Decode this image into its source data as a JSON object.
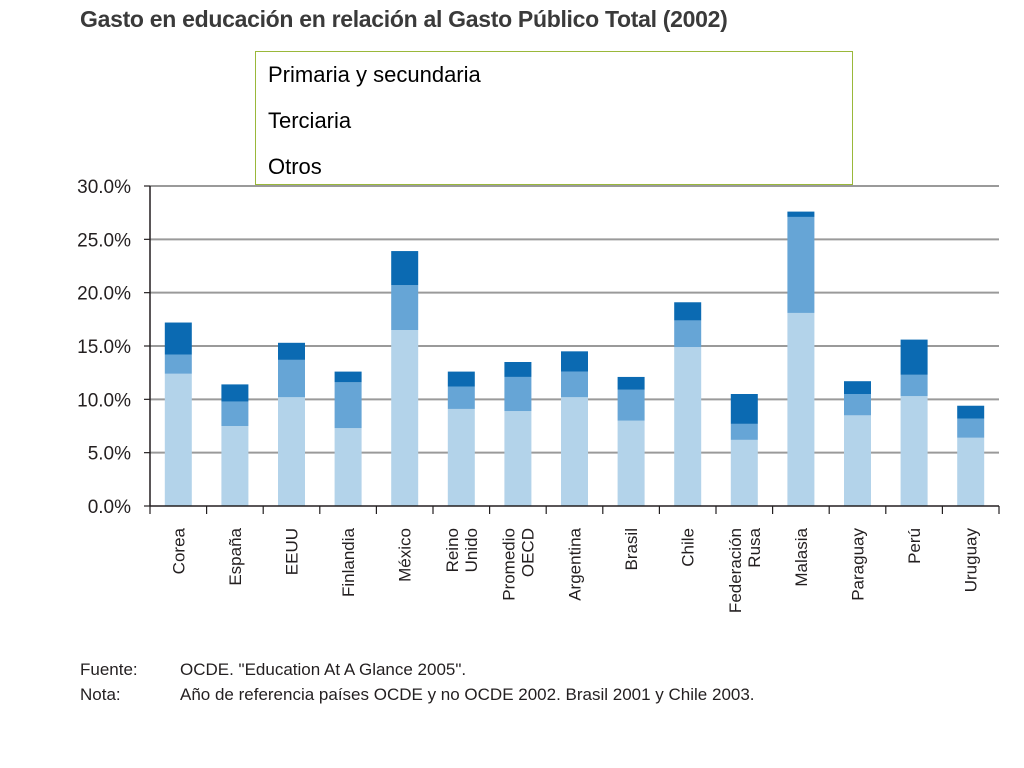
{
  "title": "Gasto en educación en relación al Gasto Público Total (2002)",
  "legend": [
    "Primaria y secundaria",
    "Terciaria",
    "Otros"
  ],
  "colors": {
    "Primaria y secundaria": "#b3d3ea",
    "Terciaria": "#66a5d6",
    "Otros": "#0b6ab2",
    "gridline": "#9a9a9a",
    "axis": "#231f20",
    "legend_border": "#9ab83a"
  },
  "chart_data": {
    "type": "bar",
    "stacked": true,
    "categories": [
      [
        "Corea"
      ],
      [
        "España"
      ],
      [
        "EEUU"
      ],
      [
        "Finlandia"
      ],
      [
        "México"
      ],
      [
        "Reino",
        "Unido"
      ],
      [
        "Promedio",
        "OECD"
      ],
      [
        "Argentina"
      ],
      [
        "Brasil"
      ],
      [
        "Chile"
      ],
      [
        "Federación",
        "Rusa"
      ],
      [
        "Malasia"
      ],
      [
        "Paraguay"
      ],
      [
        "Perú"
      ],
      [
        "Uruguay"
      ]
    ],
    "series": [
      {
        "name": "Primaria y secundaria",
        "values": [
          12.4,
          7.5,
          10.2,
          7.3,
          16.5,
          9.1,
          8.9,
          10.2,
          8.0,
          14.9,
          6.2,
          18.1,
          8.5,
          10.3,
          6.4
        ]
      },
      {
        "name": "Terciaria",
        "values": [
          1.8,
          2.3,
          3.5,
          4.3,
          4.2,
          2.1,
          3.2,
          2.4,
          2.9,
          2.5,
          1.5,
          9.0,
          2.0,
          2.0,
          1.8
        ]
      },
      {
        "name": "Otros",
        "values": [
          3.0,
          1.6,
          1.6,
          1.0,
          3.2,
          1.4,
          1.4,
          1.9,
          1.2,
          1.7,
          2.8,
          0.5,
          1.2,
          3.3,
          1.2
        ]
      }
    ],
    "yticks": [
      "0.0%",
      "5.0%",
      "10.0%",
      "15.0%",
      "20.0%",
      "25.0%",
      "30.0%"
    ],
    "ylim": [
      0,
      30
    ],
    "grid": true,
    "legend_position": "top"
  },
  "footer": [
    {
      "label": "Fuente:",
      "text": "OCDE. \"Education At A Glance 2005\"."
    },
    {
      "label": "Nota:",
      "text": "Año de referencia países OCDE y no OCDE 2002. Brasil 2001 y Chile 2003."
    }
  ]
}
